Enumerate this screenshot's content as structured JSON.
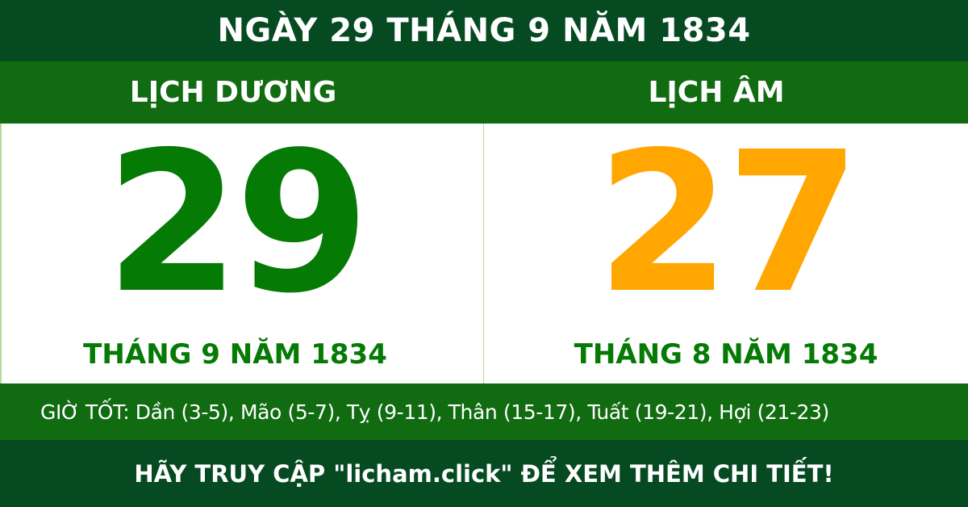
{
  "title": "NGÀY 29 THÁNG 9 NĂM 1834",
  "solar": {
    "label": "LỊCH DƯƠNG",
    "day": "29",
    "month_year": "THÁNG 9 NĂM 1834"
  },
  "lunar": {
    "label": "LỊCH ÂM",
    "day": "27",
    "month_year": "THÁNG 8 NĂM 1834"
  },
  "good_hours": "GIỜ TỐT: Dần (3-5), Mão (5-7), Tỵ (9-11), Thân (15-17), Tuất (19-21), Hợi (21-23)",
  "footer": "HÃY TRUY CẬP \"licham.click\" ĐỂ XEM THÊM CHI TIẾT!",
  "colors": {
    "dark_green": "#054a21",
    "green": "#106b11",
    "solar_day": "#057a05",
    "lunar_day": "#ffa600"
  }
}
